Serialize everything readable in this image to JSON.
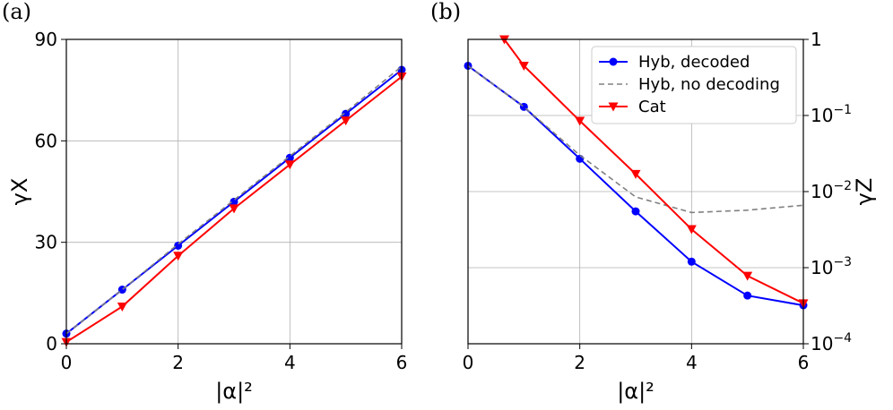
{
  "panel_labels": [
    "(a)",
    "(b)"
  ],
  "chart_data": [
    {
      "type": "line",
      "panel": "(a)",
      "xlabel": "|α|²",
      "ylabel": "γX",
      "xlim": [
        0,
        6
      ],
      "ylim": [
        0,
        90
      ],
      "xticks": [
        0,
        2,
        4,
        6
      ],
      "yticks": [
        0,
        30,
        60,
        90
      ],
      "grid": true,
      "legend": "none",
      "series": [
        {
          "id": "hyb_decoded",
          "color": "#0000ff",
          "style": "solid",
          "marker": "circle",
          "x": [
            0,
            1,
            2,
            3,
            4,
            5,
            6
          ],
          "y": [
            3,
            16,
            29,
            42,
            55,
            68,
            81
          ]
        },
        {
          "id": "hyb_nodecoding",
          "color": "#808080",
          "style": "dashed",
          "marker": "none",
          "x": [
            0,
            1,
            2,
            3,
            4,
            5,
            6
          ],
          "y": [
            3,
            16,
            29.5,
            42.5,
            55.5,
            68.5,
            82
          ]
        },
        {
          "id": "cat",
          "color": "#ff0000",
          "style": "solid",
          "marker": "triangle-down",
          "x": [
            0,
            1,
            2,
            3,
            4,
            5,
            6
          ],
          "y": [
            0.5,
            11,
            26,
            40,
            53,
            66,
            79
          ]
        }
      ]
    },
    {
      "type": "line",
      "panel": "(b)",
      "xlabel": "|α|²",
      "ylabel": "γZ",
      "yscale": "log",
      "yaxis_side": "right",
      "xlim": [
        0,
        6
      ],
      "ylim": [
        0.0001,
        1
      ],
      "xticks": [
        0,
        2,
        4,
        6
      ],
      "yticks": [
        {
          "value": 0.0001,
          "base": "10",
          "exp": "−4"
        },
        {
          "value": 0.001,
          "base": "10",
          "exp": "−3"
        },
        {
          "value": 0.01,
          "base": "10",
          "exp": "−2"
        },
        {
          "value": 0.1,
          "base": "10",
          "exp": "−1"
        },
        {
          "value": 1,
          "base": "1",
          "exp": ""
        }
      ],
      "grid": true,
      "legend": "top-right",
      "series": [
        {
          "id": "hyb_decoded",
          "name": "Hyb, decoded",
          "color": "#0000ff",
          "style": "solid",
          "marker": "circle",
          "x": [
            0,
            1,
            2,
            3,
            4,
            5,
            6
          ],
          "y": [
            0.45,
            0.13,
            0.027,
            0.0055,
            0.0012,
            0.00043,
            0.00032
          ]
        },
        {
          "id": "hyb_nodecoding",
          "name": "Hyb, no decoding",
          "color": "#808080",
          "style": "dashed",
          "marker": "none",
          "x": [
            0,
            1,
            2,
            3,
            4,
            5,
            6
          ],
          "y": [
            0.45,
            0.13,
            0.03,
            0.0085,
            0.0053,
            0.0057,
            0.0066
          ]
        },
        {
          "id": "cat",
          "name": "Cat",
          "color": "#ff0000",
          "style": "solid",
          "marker": "triangle-down",
          "x": [
            0.65,
            1,
            2,
            3,
            4,
            5,
            6
          ],
          "y": [
            1,
            0.45,
            0.085,
            0.017,
            0.0032,
            0.00078,
            0.00034
          ]
        }
      ]
    }
  ]
}
